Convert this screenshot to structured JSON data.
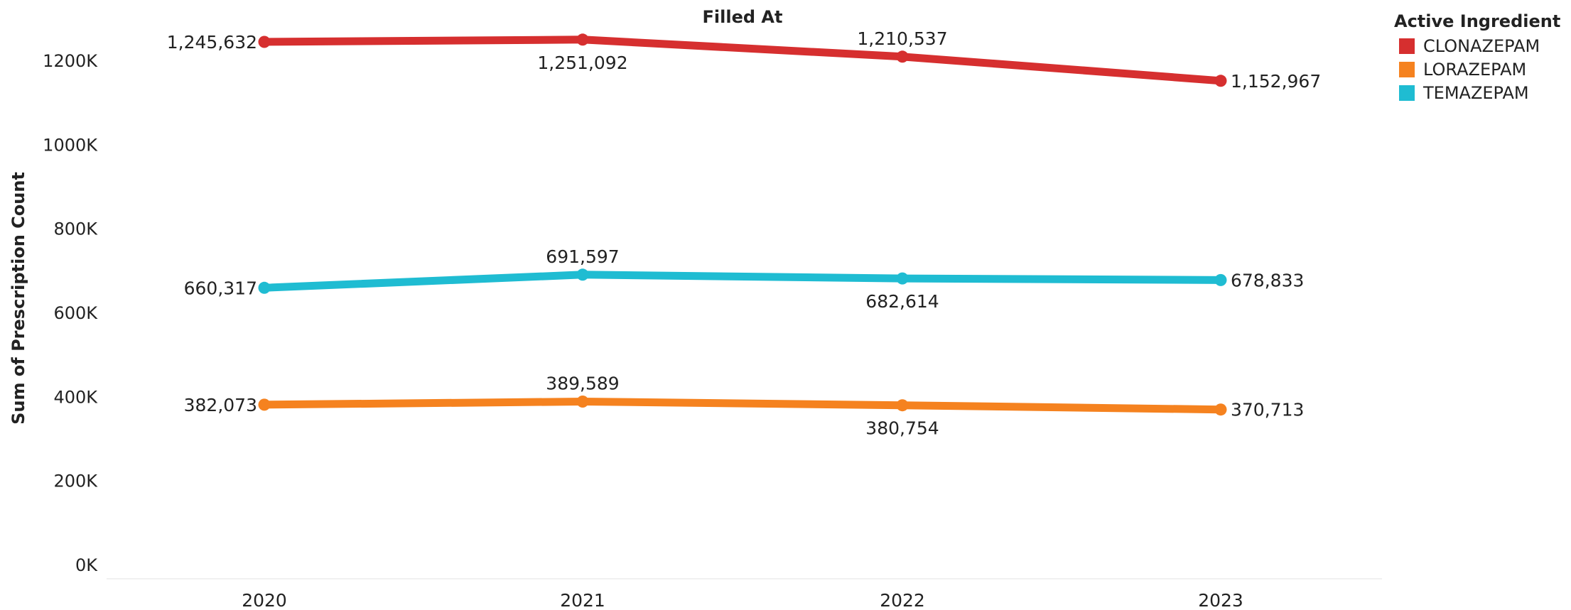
{
  "chart_data": {
    "type": "line",
    "title": "Filled At",
    "xlabel": "",
    "ylabel": "Sum of Prescription Count",
    "categories": [
      "2020",
      "2021",
      "2022",
      "2023"
    ],
    "ylim": [
      0,
      1300000
    ],
    "yticks": [
      0,
      200000,
      400000,
      600000,
      800000,
      1000000,
      1200000
    ],
    "ytick_labels": [
      "0K",
      "200K",
      "400K",
      "600K",
      "800K",
      "1000K",
      "1200K"
    ],
    "grid": false,
    "legend_title": "Active Ingredient",
    "legend_position": "top-right",
    "series": [
      {
        "name": "CLONAZEPAM",
        "color": "#d62f2f",
        "values": [
          1245632,
          1251092,
          1210537,
          1152967
        ],
        "labels": [
          "1,245,632",
          "1,251,092",
          "1,210,537",
          "1,152,967"
        ],
        "label_positions": [
          "left",
          "below",
          "above",
          "right"
        ]
      },
      {
        "name": "LORAZEPAM",
        "color": "#f5821f",
        "values": [
          382073,
          389589,
          380754,
          370713
        ],
        "labels": [
          "382,073",
          "389,589",
          "380,754",
          "370,713"
        ],
        "label_positions": [
          "left",
          "above",
          "below",
          "right"
        ]
      },
      {
        "name": "TEMAZEPAM",
        "color": "#1fbcd2",
        "values": [
          660317,
          691597,
          682614,
          678833
        ],
        "labels": [
          "660,317",
          "691,597",
          "682,614",
          "678,833"
        ],
        "label_positions": [
          "left",
          "above",
          "below",
          "right"
        ]
      }
    ]
  }
}
